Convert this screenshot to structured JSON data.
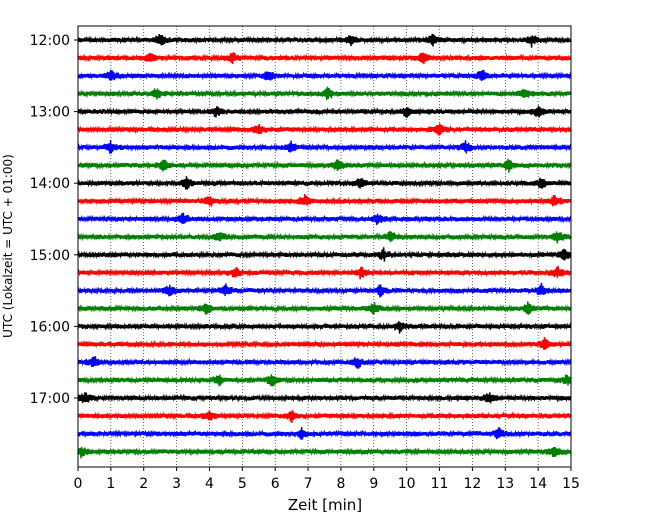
{
  "chart_data": {
    "type": "line",
    "subtype": "helicorder-seismogram",
    "xlabel": "Zeit  [min]",
    "ylabel": "UTC (Lokalzeit = UTC + 01:00)",
    "xlim": [
      0,
      15
    ],
    "x_ticks": [
      "0",
      "1",
      "2",
      "3",
      "4",
      "5",
      "6",
      "7",
      "8",
      "9",
      "10",
      "11",
      "12",
      "13",
      "14",
      "15"
    ],
    "row_interval_min": 15,
    "hour_labels": [
      "12:00",
      "13:00",
      "14:00",
      "15:00",
      "16:00",
      "17:00"
    ],
    "grid": "vertical-dotted",
    "trace_colors": [
      "#000000",
      "#ff0000",
      "#0000ff",
      "#008000"
    ],
    "rows": [
      {
        "start": "12:00",
        "events": [
          2.5,
          8.3,
          10.8,
          13.8
        ]
      },
      {
        "start": "12:15",
        "events": [
          2.2,
          4.7,
          10.5
        ]
      },
      {
        "start": "12:30",
        "events": [
          1.0,
          5.8,
          12.3
        ]
      },
      {
        "start": "12:45",
        "events": [
          2.4,
          7.6,
          13.6
        ]
      },
      {
        "start": "13:00",
        "events": [
          4.2,
          10.0,
          14.0
        ]
      },
      {
        "start": "13:15",
        "events": [
          5.5,
          11.0
        ]
      },
      {
        "start": "13:30",
        "events": [
          1.0,
          6.5,
          11.8
        ]
      },
      {
        "start": "13:45",
        "events": [
          2.6,
          7.9,
          13.1
        ]
      },
      {
        "start": "14:00",
        "events": [
          3.3,
          8.6,
          14.1
        ]
      },
      {
        "start": "14:15",
        "events": [
          4.0,
          6.9,
          14.5
        ]
      },
      {
        "start": "14:30",
        "events": [
          3.2,
          9.1
        ]
      },
      {
        "start": "14:45",
        "events": [
          4.3,
          9.5,
          14.6
        ]
      },
      {
        "start": "15:00",
        "events": [
          9.3,
          14.8
        ]
      },
      {
        "start": "15:15",
        "events": [
          4.8,
          8.6,
          14.6
        ]
      },
      {
        "start": "15:30",
        "events": [
          2.8,
          4.5,
          9.2,
          14.1
        ]
      },
      {
        "start": "15:45",
        "events": [
          3.9,
          9.0,
          13.7
        ]
      },
      {
        "start": "16:00",
        "events": [
          9.8
        ]
      },
      {
        "start": "16:15",
        "events": [
          14.2
        ]
      },
      {
        "start": "16:30",
        "events": [
          0.5,
          8.5
        ]
      },
      {
        "start": "16:45",
        "events": [
          4.3,
          5.9,
          14.9
        ]
      },
      {
        "start": "17:00",
        "events": [
          0.2,
          12.5
        ]
      },
      {
        "start": "17:15",
        "events": [
          4.0,
          6.5
        ]
      },
      {
        "start": "17:30",
        "events": [
          6.8,
          12.8
        ]
      },
      {
        "start": "17:45",
        "events": [
          0.1,
          14.5
        ]
      }
    ]
  }
}
